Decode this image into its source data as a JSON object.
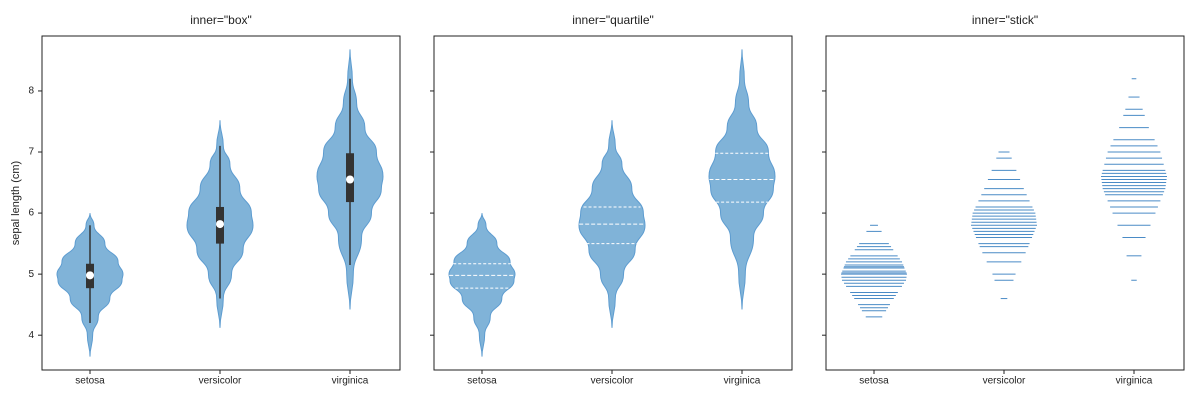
{
  "chart_data": [
    {
      "type": "violin",
      "title": "inner=\"box\"",
      "inner": "box",
      "fill": true,
      "color": "#80b3d8",
      "edge_color": "#5d9cd0",
      "tick_labels": true,
      "ylabel": "sepal length (cm)",
      "ylim": [
        3.43,
        8.9
      ],
      "yticks": [
        4,
        5,
        6,
        7,
        8
      ],
      "categories": [
        "setosa",
        "versicolor",
        "virginica"
      ],
      "violins": [
        {
          "y": [
            3.65,
            4.0,
            4.3,
            4.6,
            4.9,
            5.0,
            5.2,
            5.5,
            5.8,
            6.0
          ],
          "density": [
            0,
            0.08,
            0.25,
            0.6,
            0.97,
            1.0,
            0.85,
            0.45,
            0.12,
            0
          ]
        },
        {
          "y": [
            4.12,
            4.6,
            5.0,
            5.4,
            5.8,
            6.0,
            6.4,
            6.8,
            7.1,
            7.52
          ],
          "density": [
            0,
            0.1,
            0.35,
            0.7,
            1.0,
            0.95,
            0.6,
            0.3,
            0.1,
            0
          ]
        },
        {
          "y": [
            4.42,
            5.0,
            5.6,
            6.0,
            6.4,
            6.6,
            7.0,
            7.4,
            7.8,
            8.2,
            8.68
          ],
          "density": [
            0,
            0.1,
            0.35,
            0.65,
            0.95,
            1.0,
            0.8,
            0.45,
            0.2,
            0.07,
            0
          ]
        }
      ],
      "min": [
        4.2,
        4.6,
        5.15
      ],
      "q1": [
        4.77,
        5.5,
        6.18
      ],
      "median": [
        4.98,
        5.82,
        6.55
      ],
      "q3": [
        5.17,
        6.1,
        6.98
      ],
      "max": [
        5.8,
        7.1,
        8.2
      ]
    },
    {
      "type": "violin",
      "title": "inner=\"quartile\"",
      "inner": "quartile",
      "fill": true,
      "color": "#80b3d8",
      "edge_color": "#5d9cd0",
      "tick_labels": false,
      "ylim": [
        3.43,
        8.9
      ],
      "yticks": [
        4,
        5,
        6,
        7,
        8
      ],
      "categories": [
        "setosa",
        "versicolor",
        "virginica"
      ],
      "violins": [
        {
          "y": [
            3.65,
            4.0,
            4.3,
            4.6,
            4.9,
            5.0,
            5.2,
            5.5,
            5.8,
            6.0
          ],
          "density": [
            0,
            0.08,
            0.25,
            0.6,
            0.97,
            1.0,
            0.85,
            0.45,
            0.12,
            0
          ]
        },
        {
          "y": [
            4.12,
            4.6,
            5.0,
            5.4,
            5.8,
            6.0,
            6.4,
            6.8,
            7.1,
            7.52
          ],
          "density": [
            0,
            0.1,
            0.35,
            0.7,
            1.0,
            0.95,
            0.6,
            0.3,
            0.1,
            0
          ]
        },
        {
          "y": [
            4.42,
            5.0,
            5.6,
            6.0,
            6.4,
            6.6,
            7.0,
            7.4,
            7.8,
            8.2,
            8.68
          ],
          "density": [
            0,
            0.1,
            0.35,
            0.65,
            0.95,
            1.0,
            0.8,
            0.45,
            0.2,
            0.07,
            0
          ]
        }
      ],
      "q1": [
        4.77,
        5.5,
        6.18
      ],
      "median": [
        4.98,
        5.82,
        6.55
      ],
      "q3": [
        5.17,
        6.1,
        6.98
      ]
    },
    {
      "type": "violin",
      "title": "inner=\"stick\"",
      "inner": "stick",
      "fill": false,
      "color": "#4a8bc6",
      "edge_color": "#5d9cd0",
      "tick_labels": false,
      "ylim": [
        3.43,
        8.9
      ],
      "yticks": [
        4,
        5,
        6,
        7,
        8
      ],
      "categories": [
        "setosa",
        "versicolor",
        "virginica"
      ],
      "violins": [
        {
          "y": [
            3.65,
            4.0,
            4.3,
            4.6,
            4.9,
            5.0,
            5.2,
            5.5,
            5.8,
            6.0
          ],
          "density": [
            0,
            0.08,
            0.25,
            0.6,
            0.97,
            1.0,
            0.85,
            0.45,
            0.12,
            0
          ]
        },
        {
          "y": [
            4.12,
            4.6,
            5.0,
            5.4,
            5.8,
            6.0,
            6.4,
            6.8,
            7.1,
            7.52
          ],
          "density": [
            0,
            0.1,
            0.35,
            0.7,
            1.0,
            0.95,
            0.6,
            0.3,
            0.1,
            0
          ]
        },
        {
          "y": [
            4.42,
            5.0,
            5.6,
            6.0,
            6.4,
            6.6,
            7.0,
            7.4,
            7.8,
            8.2,
            8.68
          ],
          "density": [
            0,
            0.1,
            0.35,
            0.65,
            0.95,
            1.0,
            0.8,
            0.45,
            0.2,
            0.07,
            0
          ]
        }
      ],
      "observations": [
        [
          4.3,
          4.4,
          4.45,
          4.5,
          4.6,
          4.65,
          4.7,
          4.8,
          4.85,
          4.9,
          4.95,
          5.0,
          5.02,
          5.05,
          5.1,
          5.12,
          5.15,
          5.2,
          5.25,
          5.3,
          5.4,
          5.45,
          5.5,
          5.7,
          5.8
        ],
        [
          4.6,
          4.9,
          5.0,
          5.2,
          5.35,
          5.45,
          5.5,
          5.6,
          5.65,
          5.7,
          5.75,
          5.8,
          5.85,
          5.9,
          5.95,
          6.0,
          6.05,
          6.1,
          6.2,
          6.3,
          6.4,
          6.55,
          6.7,
          6.9,
          7.0
        ],
        [
          4.9,
          5.3,
          5.6,
          5.8,
          6.0,
          6.1,
          6.2,
          6.3,
          6.35,
          6.4,
          6.45,
          6.5,
          6.55,
          6.6,
          6.65,
          6.7,
          6.8,
          6.9,
          7.0,
          7.1,
          7.2,
          7.4,
          7.6,
          7.7,
          7.9,
          8.2
        ]
      ]
    }
  ]
}
